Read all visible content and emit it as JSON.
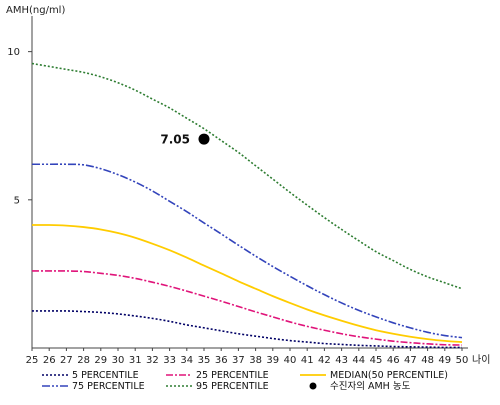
{
  "chart_data": {
    "type": "line",
    "ylabel": "AMH(ng/ml)",
    "xlabel": "나이",
    "xlim": [
      25,
      50
    ],
    "ylim": [
      0,
      11
    ],
    "x_ticks": [
      25,
      26,
      27,
      28,
      29,
      30,
      31,
      32,
      33,
      34,
      35,
      36,
      37,
      38,
      39,
      40,
      41,
      42,
      43,
      44,
      45,
      46,
      47,
      48,
      49,
      50
    ],
    "y_ticks": [
      5,
      10
    ],
    "grid": false,
    "x": [
      25,
      26,
      27,
      28,
      29,
      30,
      31,
      32,
      33,
      34,
      35,
      36,
      37,
      38,
      39,
      40,
      41,
      42,
      43,
      44,
      45,
      46,
      47,
      48,
      49,
      50
    ],
    "series": [
      {
        "name": "5 PERCENTILE",
        "color": "#000066",
        "dash": "2,2",
        "values": [
          1.25,
          1.25,
          1.25,
          1.23,
          1.2,
          1.15,
          1.08,
          1.0,
          0.9,
          0.78,
          0.68,
          0.58,
          0.48,
          0.4,
          0.32,
          0.25,
          0.2,
          0.15,
          0.12,
          0.09,
          0.07,
          0.05,
          0.04,
          0.03,
          0.02,
          0.02
        ]
      },
      {
        "name": "25 PERCENTILE",
        "color": "#e0147a",
        "dash": "7,2,2,2",
        "values": [
          2.6,
          2.6,
          2.6,
          2.58,
          2.52,
          2.45,
          2.35,
          2.22,
          2.08,
          1.92,
          1.75,
          1.58,
          1.4,
          1.22,
          1.05,
          0.88,
          0.73,
          0.6,
          0.48,
          0.38,
          0.3,
          0.23,
          0.18,
          0.14,
          0.11,
          0.1
        ]
      },
      {
        "name": "MEDIAN(50 PERCENTILE)",
        "color": "#ffcc00",
        "dash": "",
        "values": [
          4.15,
          4.15,
          4.13,
          4.08,
          4.0,
          3.88,
          3.72,
          3.52,
          3.3,
          3.05,
          2.78,
          2.52,
          2.25,
          2.0,
          1.75,
          1.52,
          1.3,
          1.1,
          0.92,
          0.75,
          0.6,
          0.48,
          0.38,
          0.3,
          0.24,
          0.2
        ]
      },
      {
        "name": "75 PERCENTILE",
        "color": "#3344bb",
        "dash": "8,2,2,2,2,2",
        "values": [
          6.2,
          6.2,
          6.2,
          6.18,
          6.05,
          5.85,
          5.6,
          5.3,
          4.95,
          4.6,
          4.22,
          3.85,
          3.47,
          3.1,
          2.75,
          2.42,
          2.1,
          1.8,
          1.52,
          1.27,
          1.05,
          0.85,
          0.68,
          0.53,
          0.42,
          0.35
        ]
      },
      {
        "name": "95 PERCENTILE",
        "color": "#2e7d32",
        "dash": "2,2",
        "values": [
          9.6,
          9.5,
          9.4,
          9.3,
          9.15,
          8.95,
          8.7,
          8.4,
          8.1,
          7.75,
          7.4,
          7.0,
          6.6,
          6.15,
          5.7,
          5.25,
          4.82,
          4.4,
          4.0,
          3.62,
          3.25,
          2.95,
          2.65,
          2.4,
          2.2,
          2.0
        ]
      }
    ],
    "annotations": [
      {
        "x": 35,
        "y": 7.05,
        "label": "7.05"
      }
    ],
    "legend": {
      "placement": "bottom",
      "marker_label": "수진자의 AMH 농도"
    }
  }
}
